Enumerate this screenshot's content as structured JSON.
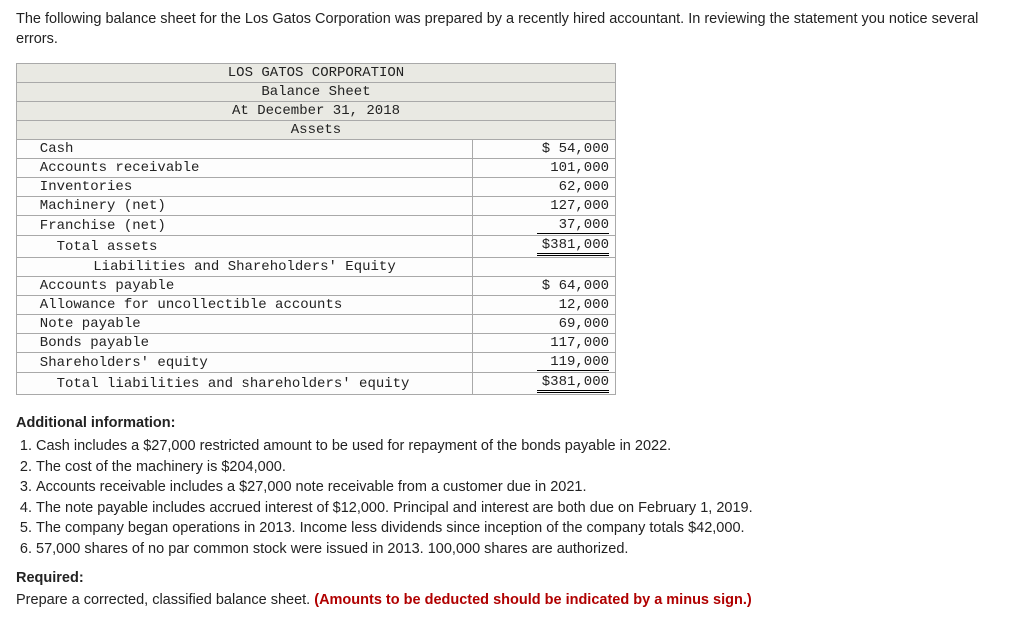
{
  "intro": "The following balance sheet for the Los Gatos Corporation was prepared by a recently hired accountant. In reviewing the statement you notice several errors.",
  "sheet": {
    "company": "LOS GATOS CORPORATION",
    "title": "Balance Sheet",
    "date": "At December 31, 2018",
    "assets_header": "Assets",
    "assets": [
      {
        "label": "  Cash",
        "value": "$ 54,000"
      },
      {
        "label": "  Accounts receivable",
        "value": "101,000"
      },
      {
        "label": "  Inventories",
        "value": "62,000"
      },
      {
        "label": "  Machinery (net)",
        "value": "127,000"
      },
      {
        "label": "  Franchise (net)",
        "value": "37,000",
        "underline": "single"
      },
      {
        "label": "    Total assets",
        "value": "$381,000",
        "underline": "double"
      }
    ],
    "liab_header": "Liabilities and Shareholders' Equity",
    "liabs": [
      {
        "label": "  Accounts payable",
        "value": "$ 64,000"
      },
      {
        "label": "  Allowance for uncollectible accounts",
        "value": "12,000"
      },
      {
        "label": "  Note payable",
        "value": "69,000"
      },
      {
        "label": "  Bonds payable",
        "value": "117,000"
      },
      {
        "label": "  Shareholders' equity",
        "value": "119,000",
        "underline": "single"
      },
      {
        "label": "    Total liabilities and shareholders' equity",
        "value": "$381,000",
        "underline": "double"
      }
    ]
  },
  "additional": {
    "heading": "Additional information:",
    "items": [
      "Cash includes a $27,000 restricted amount to be used for repayment of the bonds payable in 2022.",
      "The cost of the machinery is $204,000.",
      "Accounts receivable includes a $27,000 note receivable from a customer due in 2021.",
      "The note payable includes accrued interest of $12,000. Principal and interest are both due on February 1, 2019.",
      "The company began operations in 2013. Income less dividends since inception of the company totals $42,000.",
      "57,000 shares of no par common stock were issued in 2013. 100,000 shares are authorized."
    ]
  },
  "required": {
    "heading": "Required:",
    "text": "Prepare a corrected, classified balance sheet. ",
    "deduct": "(Amounts to be deducted should be indicated by a minus sign.)"
  },
  "colors": {
    "header_bg": "#e9e9e3",
    "border": "#a9a9a9",
    "deduct_text": "#b00000"
  }
}
